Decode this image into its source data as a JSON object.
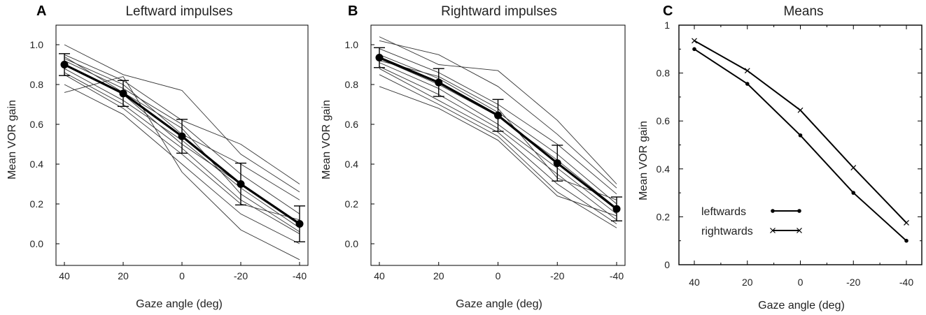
{
  "panels": [
    {
      "letter": "A",
      "title": "Leftward impulses",
      "ylabel": "Mean VOR gain",
      "xlabel": "Gaze angle (deg)",
      "chart_data": {
        "type": "line",
        "x": [
          40,
          20,
          0,
          -20,
          -40
        ],
        "xlim": [
          40,
          -40
        ],
        "ylim": [
          -0.1,
          1.05
        ],
        "xticks": [
          "40",
          "20",
          "0",
          "-20",
          "-40"
        ],
        "yticks": [
          "0.0",
          "0.2",
          "0.4",
          "0.6",
          "0.8",
          "1.0"
        ],
        "individuals": [
          [
            1.0,
            0.85,
            0.77,
            0.45,
            0.26
          ],
          [
            0.95,
            0.82,
            0.62,
            0.5,
            0.3
          ],
          [
            0.93,
            0.8,
            0.55,
            0.4,
            0.22
          ],
          [
            0.92,
            0.78,
            0.6,
            0.35,
            0.15
          ],
          [
            0.9,
            0.75,
            0.5,
            0.3,
            0.1
          ],
          [
            0.88,
            0.72,
            0.52,
            0.28,
            0.08
          ],
          [
            0.86,
            0.7,
            0.48,
            0.22,
            0.05
          ],
          [
            0.85,
            0.68,
            0.45,
            0.2,
            0.12
          ],
          [
            0.8,
            0.65,
            0.4,
            0.15,
            0.0
          ],
          [
            0.76,
            0.84,
            0.36,
            0.07,
            -0.08
          ],
          [
            0.94,
            0.76,
            0.58,
            0.25,
            0.06
          ]
        ],
        "mean": [
          0.9,
          0.755,
          0.54,
          0.3,
          0.1
        ],
        "error": [
          0.055,
          0.065,
          0.085,
          0.105,
          0.09
        ]
      }
    },
    {
      "letter": "B",
      "title": "Rightward impulses",
      "ylabel": "Mean VOR gain",
      "xlabel": "Gaze angle (deg)",
      "chart_data": {
        "type": "line",
        "x": [
          40,
          20,
          0,
          -20,
          -40
        ],
        "xlim": [
          40,
          -40
        ],
        "ylim": [
          -0.1,
          1.05
        ],
        "xticks": [
          "40",
          "20",
          "0",
          "-20",
          "-40"
        ],
        "yticks": [
          "0.0",
          "0.2",
          "0.4",
          "0.6",
          "0.8",
          "1.0"
        ],
        "individuals": [
          [
            1.04,
            0.9,
            0.87,
            0.62,
            0.3
          ],
          [
            1.02,
            0.95,
            0.79,
            0.55,
            0.28
          ],
          [
            0.98,
            0.86,
            0.7,
            0.5,
            0.25
          ],
          [
            0.95,
            0.83,
            0.66,
            0.45,
            0.2
          ],
          [
            0.93,
            0.8,
            0.64,
            0.42,
            0.18
          ],
          [
            0.91,
            0.78,
            0.6,
            0.38,
            0.15
          ],
          [
            0.89,
            0.75,
            0.58,
            0.35,
            0.12
          ],
          [
            0.88,
            0.72,
            0.56,
            0.3,
            0.1
          ],
          [
            0.85,
            0.7,
            0.54,
            0.26,
            0.08
          ],
          [
            0.79,
            0.68,
            0.52,
            0.24,
            0.14
          ],
          [
            0.92,
            0.84,
            0.68,
            0.33,
            0.22
          ]
        ],
        "mean": [
          0.935,
          0.81,
          0.645,
          0.405,
          0.175
        ],
        "error": [
          0.05,
          0.07,
          0.08,
          0.09,
          0.06
        ]
      }
    },
    {
      "letter": "C",
      "title": "Means",
      "ylabel": "Mean VOR gain",
      "xlabel": "Gaze angle (deg)",
      "chart_data": {
        "type": "line",
        "x": [
          40,
          20,
          0,
          -20,
          -40
        ],
        "xlim": [
          40,
          -40
        ],
        "ylim": [
          0,
          1
        ],
        "xticks": [
          "40",
          "20",
          "0",
          "-20",
          "-40"
        ],
        "yticks": [
          "0",
          "0.2",
          "0.4",
          "0.6",
          "0.8",
          "1"
        ],
        "series": [
          {
            "name": "leftwards",
            "marker": "dot",
            "values": [
              0.9,
              0.755,
              0.54,
              0.3,
              0.1
            ]
          },
          {
            "name": "rightwards",
            "marker": "cross",
            "values": [
              0.935,
              0.81,
              0.645,
              0.405,
              0.175
            ]
          }
        ],
        "legend_position": "bottom-left"
      }
    }
  ]
}
